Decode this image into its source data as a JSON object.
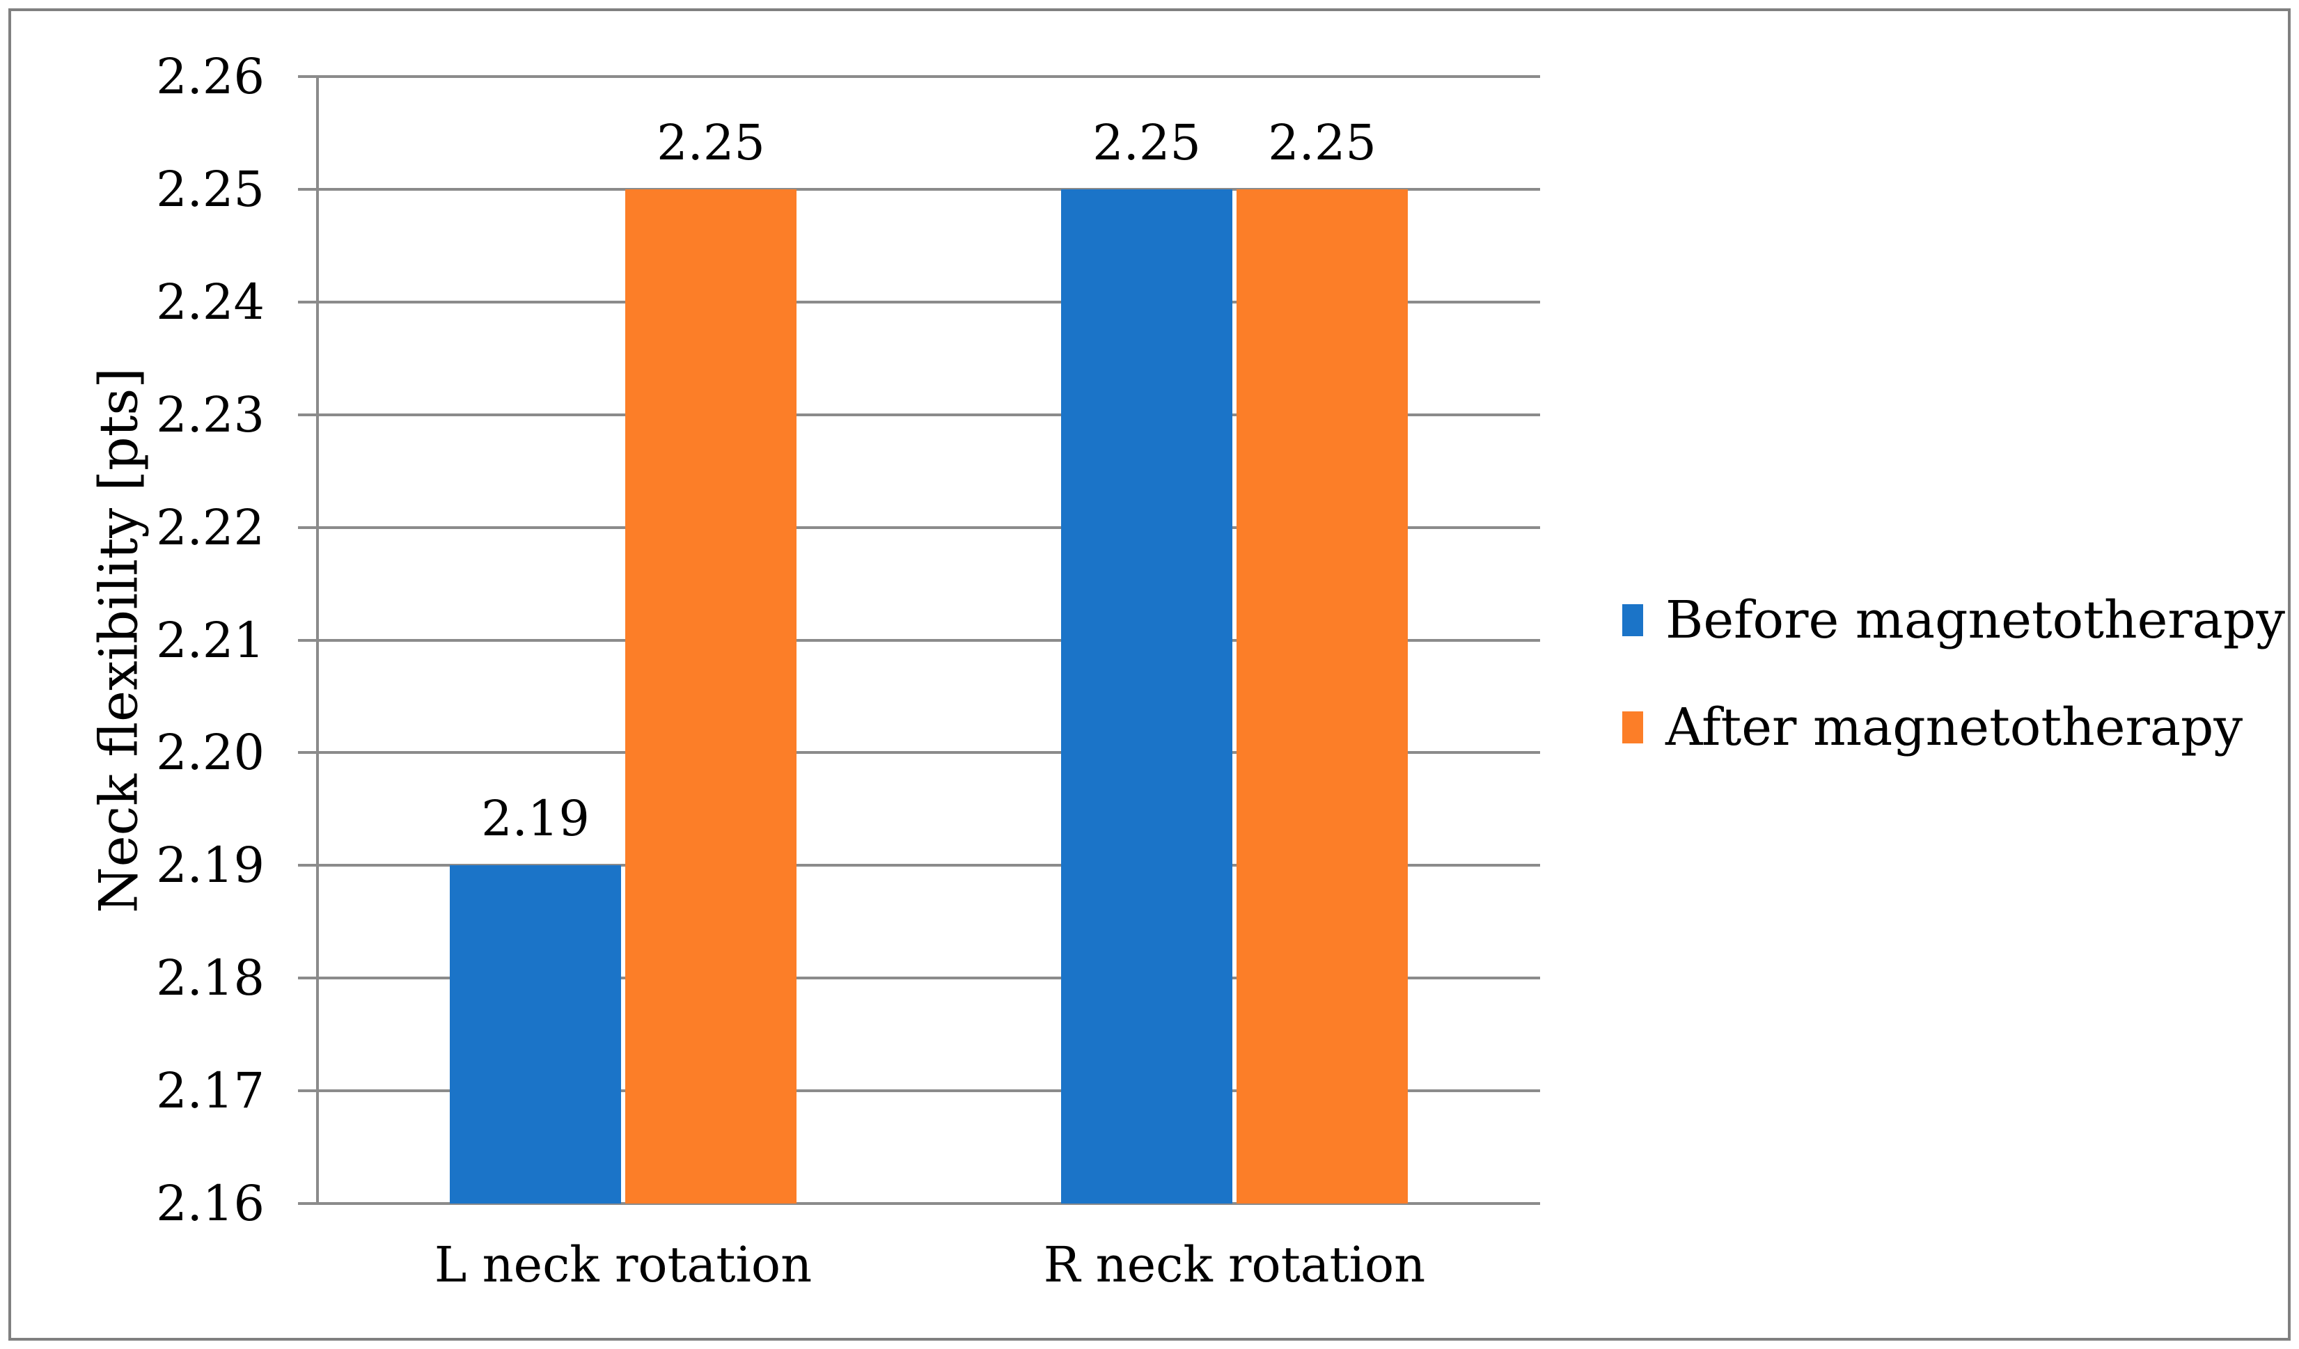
{
  "figure": {
    "border_color": "#808080",
    "background": "#ffffff"
  },
  "chart_data": {
    "type": "bar",
    "title": "",
    "categories": [
      "L neck rotation",
      "R neck rotation"
    ],
    "series": [
      {
        "name": "Before magnetotherapy",
        "color": "#1B74C8",
        "values": [
          2.19,
          2.25
        ],
        "labels": [
          "2.19",
          "2.25"
        ]
      },
      {
        "name": "After magnetotherapy",
        "color": "#FC7E28",
        "values": [
          2.25,
          2.25
        ],
        "labels": [
          "2.25",
          "2.25"
        ]
      }
    ],
    "xlabel": "",
    "ylabel": "Neck flexibility [pts]",
    "ylim": [
      2.16,
      2.26
    ],
    "y_ticks": [
      "2.26",
      "2.25",
      "2.24",
      "2.23",
      "2.22",
      "2.21",
      "2.20",
      "2.19",
      "2.18",
      "2.17",
      "2.16"
    ],
    "grid": true,
    "grid_color": "#8B8B8B",
    "axis_color": "#8B8B8B",
    "text_color": "#000000",
    "legend_position": "right",
    "data_labels_shown": true
  }
}
